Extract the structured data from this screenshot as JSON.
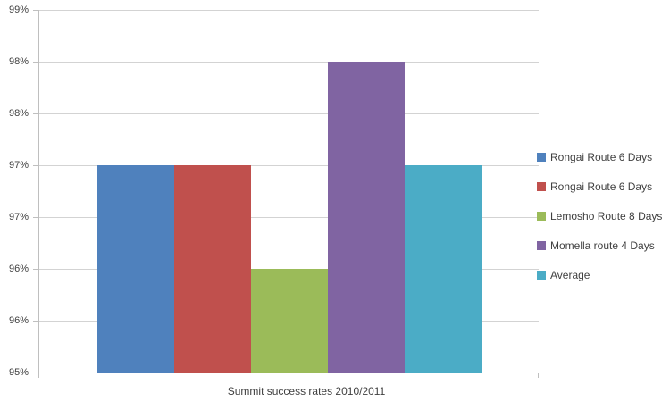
{
  "chart_data": {
    "type": "bar",
    "title": "Summit success rates 2010/2011",
    "categories": [
      "Summit success rates 2010/2011"
    ],
    "series": [
      {
        "name": "Rongai Route 6 Days",
        "values": [
          97
        ],
        "color": "#4F81BD"
      },
      {
        "name": "Rongai Route 6 Days",
        "values": [
          97
        ],
        "color": "#C0504D"
      },
      {
        "name": "Lemosho Route 8 Days",
        "values": [
          96
        ],
        "color": "#9BBB59"
      },
      {
        "name": "Momella route 4 Days",
        "values": [
          98
        ],
        "color": "#8064A2"
      },
      {
        "name": "Average",
        "values": [
          97
        ],
        "color": "#4BACC6"
      }
    ],
    "xlabel": "",
    "ylabel": "",
    "y_axis": {
      "min": 95,
      "max": 98.5,
      "step": 0.5,
      "unit": "%",
      "tick_labels_top_to_bottom": [
        "99%",
        "98%",
        "98%",
        "97%",
        "97%",
        "96%",
        "96%",
        "95%"
      ]
    },
    "grid": true,
    "legend_position": "right"
  },
  "styles": {
    "grid_color": "#D3D3D3",
    "axis_color": "#BFBFBF",
    "text_color": "#404040",
    "background": "#FFFFFF"
  }
}
